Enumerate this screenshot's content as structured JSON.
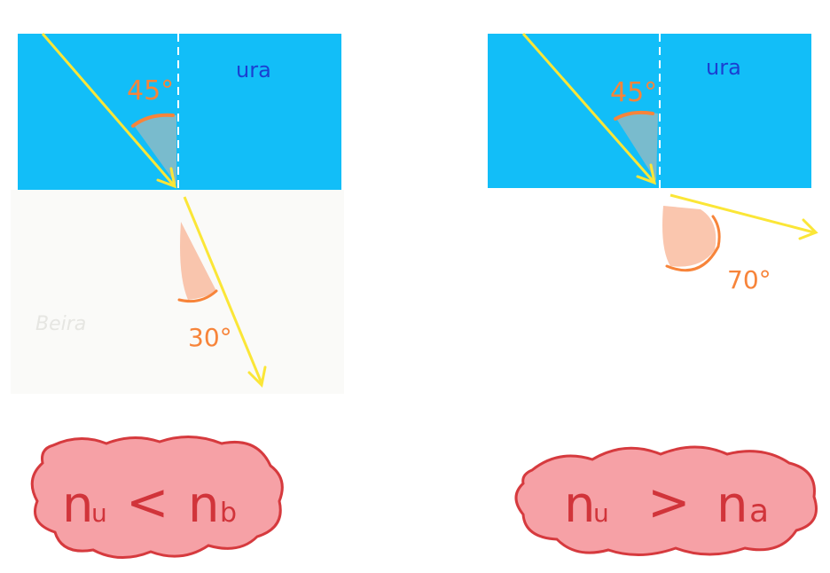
{
  "colors": {
    "water": "#12BEF8",
    "beira_bg": "#FAFAF8",
    "ray": "#FBE637",
    "angle": "#F7843A",
    "angle_fill": "#F9B89A",
    "water_label": "#1B3FD1",
    "normal_line": "#FFFFFF",
    "cloud_fill": "#F6A1A6",
    "cloud_stroke": "#D63A3E",
    "formula": "#D1343A",
    "beira_label": "#E6E6E2"
  },
  "left_panel": {
    "upper_medium_label": "ura",
    "lower_medium_label": "Beira",
    "incident_angle": "45°",
    "refracted_angle": "30°",
    "conclusion": {
      "lhs": "n",
      "lhs_sub": "u",
      "op": "<",
      "rhs": "n",
      "rhs_sub": "b"
    }
  },
  "right_panel": {
    "upper_medium_label": "ura",
    "incident_angle": "45°",
    "refracted_angle": "70°",
    "conclusion": {
      "lhs": "n",
      "lhs_sub": "u",
      "op": ">",
      "rhs": "n",
      "rhs_sub": "a"
    }
  }
}
